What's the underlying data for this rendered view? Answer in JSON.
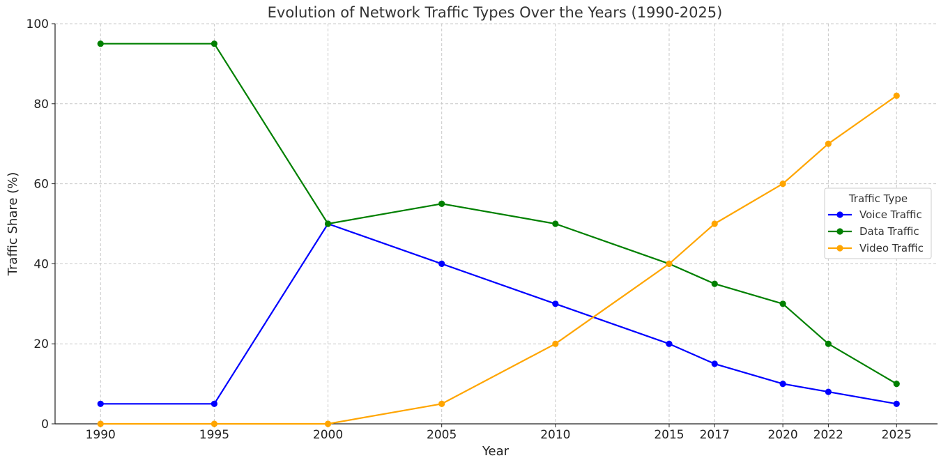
{
  "chart_data": {
    "type": "line",
    "title": "Evolution of Network Traffic Types Over the Years (1990-2025)",
    "xlabel": "Year",
    "ylabel": "Traffic Share (%)",
    "x": [
      1990,
      1995,
      2000,
      2005,
      2010,
      2015,
      2017,
      2020,
      2022,
      2025
    ],
    "x_tick_labels": [
      "1990",
      "1995",
      "2000",
      "2005",
      "2010",
      "2015",
      "2017",
      "2020",
      "2022",
      "2025"
    ],
    "y_ticks": [
      0,
      20,
      40,
      60,
      80,
      100
    ],
    "y_tick_labels": [
      "0",
      "20",
      "40",
      "60",
      "80",
      "100"
    ],
    "ylim": [
      0,
      100
    ],
    "xlim": [
      1988,
      2026.8
    ],
    "grid": true,
    "legend": {
      "title": "Traffic Type",
      "placement": "center-right"
    },
    "series": [
      {
        "name": "Voice Traffic",
        "color": "#0000ff",
        "values": [
          5,
          5,
          50,
          40,
          30,
          20,
          15,
          10,
          8,
          5
        ]
      },
      {
        "name": "Data Traffic",
        "color": "#008000",
        "values": [
          95,
          95,
          50,
          55,
          50,
          40,
          35,
          30,
          20,
          10
        ]
      },
      {
        "name": "Video Traffic",
        "color": "#ffa500",
        "values": [
          0,
          0,
          0,
          5,
          20,
          40,
          50,
          60,
          70,
          82
        ]
      }
    ]
  }
}
